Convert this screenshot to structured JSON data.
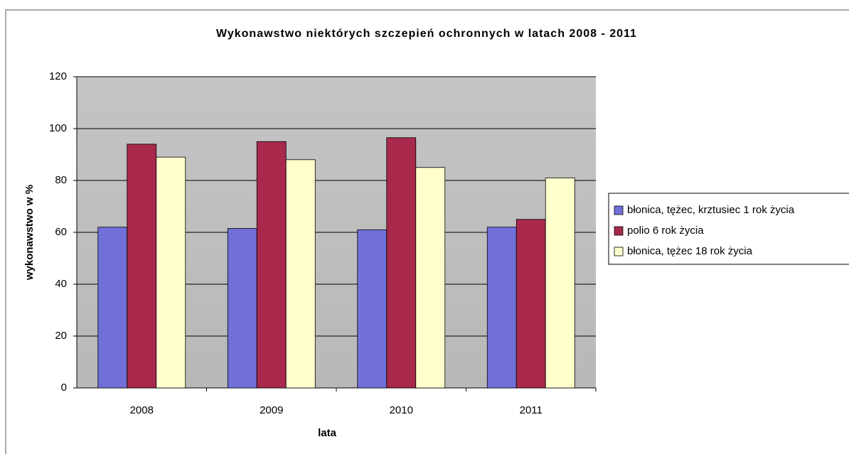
{
  "chart_data": {
    "type": "bar",
    "title": "Wykonawstwo niektórych szczepień ochronnych w latach 2008 - 2011",
    "x_label": "lata",
    "y_label": "wykonawstwo w %",
    "categories": [
      "2008",
      "2009",
      "2010",
      "2011"
    ],
    "series": [
      {
        "name": "błonica, tężec, krztusiec 1 rok życia",
        "color": "#7070d8",
        "values": [
          62,
          61.5,
          61,
          62
        ]
      },
      {
        "name": "polio 6 rok życia",
        "color": "#a8294c",
        "values": [
          94,
          95,
          96.5,
          65
        ]
      },
      {
        "name": "błonica, tężec 18 rok życia",
        "color": "#ffffcc",
        "values": [
          89,
          88,
          85,
          81
        ]
      }
    ],
    "ylim": [
      0,
      120
    ],
    "yticks": [
      0,
      20,
      40,
      60,
      80,
      100,
      120
    ],
    "grid": true,
    "legend": "right"
  }
}
